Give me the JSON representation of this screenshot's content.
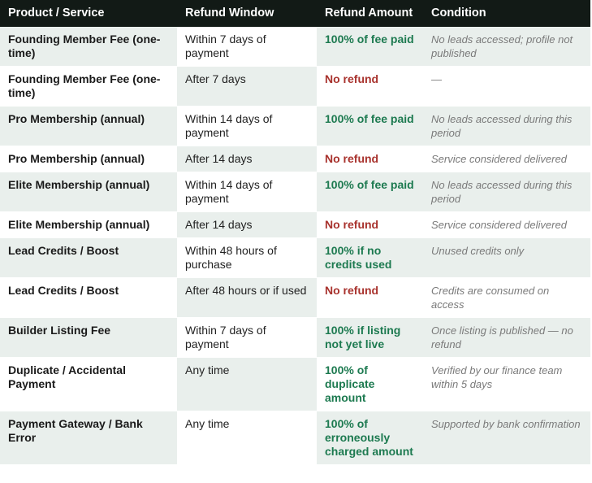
{
  "table": {
    "headers": [
      "Product / Service",
      "Refund Window",
      "Refund Amount",
      "Condition"
    ],
    "rows": [
      {
        "cells": [
          "Founding Member Fee (one-time)",
          "Within 7 days of payment",
          "100%  of fee paid",
          "No leads accessed; profile not published"
        ],
        "amount_color": "#1d7a50"
      },
      {
        "cells": [
          "Founding Member Fee (one-time)",
          "After 7 days",
          "No refund",
          "—"
        ],
        "amount_color": "#a8322d"
      },
      {
        "cells": [
          "Pro Membership (annual)",
          "Within 14 days of payment",
          "100%  of fee paid",
          "No leads accessed during this period"
        ],
        "amount_color": "#1d7a50"
      },
      {
        "cells": [
          "Pro Membership (annual)",
          "After 14 days",
          "No refund",
          "Service considered delivered"
        ],
        "amount_color": "#a8322d"
      },
      {
        "cells": [
          "Elite Membership (annual)",
          "Within 14 days of payment",
          "100%  of fee paid",
          "No leads accessed during this period"
        ],
        "amount_color": "#1d7a50"
      },
      {
        "cells": [
          "Elite Membership (annual)",
          "After 14 days",
          "No refund",
          "Service considered delivered"
        ],
        "amount_color": "#a8322d"
      },
      {
        "cells": [
          "Lead Credits / Boost",
          "Within 48 hours of purchase",
          "100%  if no credits used",
          "Unused credits only"
        ],
        "amount_color": "#1d7a50"
      },
      {
        "cells": [
          "Lead Credits / Boost",
          "After 48 hours or if used",
          "No refund",
          "Credits are consumed on access"
        ],
        "amount_color": "#a8322d"
      },
      {
        "cells": [
          "Builder Listing Fee",
          "Within 7 days of payment",
          "100%  if listing not yet live",
          "Once listing is published — no refund"
        ],
        "amount_color": "#1d7a50"
      },
      {
        "cells": [
          "Duplicate / Accidental Payment",
          "Any time",
          "100%  of duplicate amount",
          "Verified by our finance team within 5 days"
        ],
        "amount_color": "#1d7a50"
      },
      {
        "cells": [
          "Payment Gateway / Bank Error",
          "Any time",
          "100%  of erroneously charged amount",
          "Supported by bank confirmation"
        ],
        "amount_color": "#1d7a50"
      }
    ]
  }
}
